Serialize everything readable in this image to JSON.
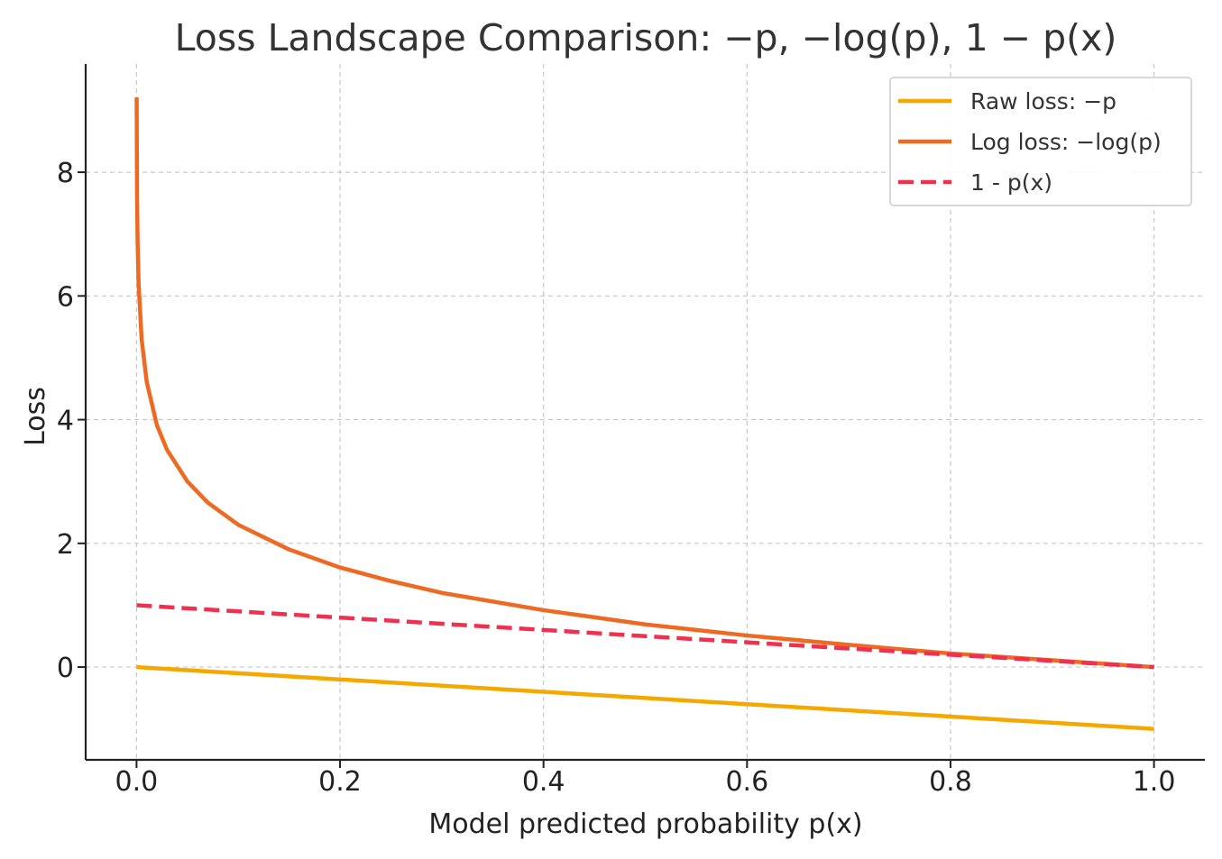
{
  "chart_data": {
    "type": "line",
    "title": "Loss Landscape Comparison: −p, −log(p), 1 − p(x)",
    "xlabel": "Model predicted probability p(x)",
    "ylabel": "Loss",
    "xlim": [
      -0.05,
      1.05
    ],
    "ylim": [
      -1.5,
      9.75
    ],
    "xticks": [
      0.0,
      0.2,
      0.4,
      0.6,
      0.8,
      1.0
    ],
    "xtick_labels": [
      "0.0",
      "0.2",
      "0.4",
      "0.6",
      "0.8",
      "1.0"
    ],
    "yticks": [
      0,
      2,
      4,
      6,
      8
    ],
    "ytick_labels": [
      "0",
      "2",
      "4",
      "6",
      "8"
    ],
    "grid": true,
    "legend_position": "top-right",
    "series": [
      {
        "name": "Raw loss: −p",
        "color": "#F5A800",
        "style": "solid",
        "x": [
          0.0,
          1.0
        ],
        "y": [
          0.0,
          -1.0
        ]
      },
      {
        "name": "Log loss: −log(p)",
        "color": "#EE6A23",
        "style": "solid",
        "x": [
          0.0001,
          0.0005,
          0.001,
          0.002,
          0.005,
          0.01,
          0.02,
          0.03,
          0.05,
          0.07,
          0.1,
          0.15,
          0.2,
          0.25,
          0.3,
          0.4,
          0.5,
          0.6,
          0.7,
          0.8,
          0.9,
          1.0
        ],
        "y": [
          9.21,
          7.6,
          6.91,
          6.21,
          5.3,
          4.61,
          3.91,
          3.51,
          3.0,
          2.66,
          2.3,
          1.9,
          1.61,
          1.39,
          1.2,
          0.92,
          0.69,
          0.51,
          0.36,
          0.22,
          0.11,
          0.0
        ]
      },
      {
        "name": "1 - p(x)",
        "color": "#F0304F",
        "style": "dashed",
        "x": [
          0.0,
          1.0
        ],
        "y": [
          1.0,
          0.0
        ]
      }
    ]
  }
}
